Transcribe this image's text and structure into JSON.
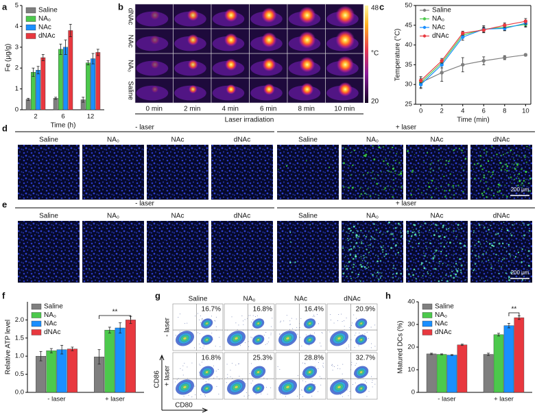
{
  "panel_letters": [
    "a",
    "b",
    "c",
    "d",
    "e",
    "f",
    "g",
    "h"
  ],
  "chart_data": [
    {
      "type": "bar",
      "categories": [
        "2",
        "6",
        "12"
      ],
      "xlabel": "Time (h)",
      "ylabel": "Fe (μg/g)",
      "ylim": [
        0,
        5
      ],
      "yticks": [
        0,
        1,
        2,
        3,
        4,
        5
      ],
      "legend": "upper left",
      "series": [
        {
          "name": "Saline",
          "color": "#7f7f7f",
          "values": [
            0.5,
            0.55,
            0.48
          ],
          "errors": [
            0.05,
            0.05,
            0.12
          ]
        },
        {
          "name": "NA₀",
          "color": "#4cc94c",
          "values": [
            1.8,
            2.9,
            2.25
          ],
          "errors": [
            0.2,
            0.25,
            0.1
          ]
        },
        {
          "name": "NAc",
          "color": "#1a8fff",
          "values": [
            1.9,
            3.0,
            2.45
          ],
          "errors": [
            0.18,
            0.35,
            0.25
          ]
        },
        {
          "name": "dNAc",
          "color": "#e8383f",
          "values": [
            2.5,
            3.8,
            2.75
          ],
          "errors": [
            0.15,
            0.3,
            0.15
          ]
        }
      ]
    },
    {
      "type": "line",
      "x": [
        0,
        2,
        4,
        6,
        8,
        10
      ],
      "xlim": [
        -0.5,
        10.5
      ],
      "xticks": [
        0,
        2,
        4,
        6,
        8,
        10
      ],
      "ylim": [
        25,
        50
      ],
      "yticks": [
        25,
        30,
        35,
        40,
        45,
        50
      ],
      "xlabel": "Time (min)",
      "ylabel": "Temperature (°C)",
      "frame": true,
      "legend": "upper left",
      "series": [
        {
          "name": "Saline",
          "color": "#7f7f7f",
          "values": [
            30.5,
            33,
            35,
            36,
            36.8,
            37.5
          ],
          "errors": [
            1.5,
            2.2,
            1.8,
            1.0,
            0.5,
            0.3
          ]
        },
        {
          "name": "NA₀",
          "color": "#4cc94c",
          "values": [
            30.5,
            35.5,
            42.5,
            44,
            44.5,
            45.2
          ],
          "errors": [
            0.8,
            0.8,
            0.6,
            0.6,
            0.8,
            0.7
          ]
        },
        {
          "name": "NAc",
          "color": "#1a8fff",
          "values": [
            30,
            35,
            42,
            44,
            44.2,
            45.5
          ],
          "errors": [
            0.8,
            0.8,
            0.8,
            0.9,
            0.6,
            0.8
          ]
        },
        {
          "name": "dNAc",
          "color": "#e8383f",
          "values": [
            31,
            36,
            43,
            43.8,
            45,
            46
          ],
          "errors": [
            0.6,
            0.6,
            0.5,
            0.6,
            0.6,
            0.7
          ]
        }
      ]
    },
    {
      "type": "bar",
      "categories": [
        "- laser",
        "+ laser"
      ],
      "ylabel": "Relative ATP level",
      "ylim": [
        0,
        2.5
      ],
      "yticks": [
        {
          "value": 0,
          "label": "0.0"
        },
        0.5,
        {
          "value": 1,
          "label": "1.0"
        },
        1.5,
        {
          "value": 2,
          "label": "2.0"
        }
      ],
      "legend": "upper left",
      "annotation": "**",
      "series": [
        {
          "name": "Saline",
          "color": "#7f7f7f",
          "values": [
            1.0,
            0.98
          ],
          "errors": [
            0.13,
            0.2
          ]
        },
        {
          "name": "NA₀",
          "color": "#4cc94c",
          "values": [
            1.15,
            1.72
          ],
          "errors": [
            0.06,
            0.08
          ]
        },
        {
          "name": "NAc",
          "color": "#1a8fff",
          "values": [
            1.18,
            1.78
          ],
          "errors": [
            0.12,
            0.14
          ]
        },
        {
          "name": "dNAc",
          "color": "#e8383f",
          "values": [
            1.2,
            2.0
          ],
          "errors": [
            0.05,
            0.1
          ]
        }
      ]
    },
    {
      "type": "bar",
      "categories": [
        "- laser",
        "+ laser"
      ],
      "ylabel": "Matured DCs (%)",
      "ylim": [
        0,
        40
      ],
      "yticks": [
        0,
        10,
        20,
        30,
        40
      ],
      "legend": "upper left",
      "annotation": "**",
      "series": [
        {
          "name": "Saline",
          "color": "#7f7f7f",
          "values": [
            17,
            16.8
          ],
          "errors": [
            0.3,
            0.5
          ]
        },
        {
          "name": "NA₀",
          "color": "#4cc94c",
          "values": [
            16.8,
            25.5
          ],
          "errors": [
            0.2,
            0.6
          ]
        },
        {
          "name": "NAc",
          "color": "#1a8fff",
          "values": [
            16.5,
            29.5
          ],
          "errors": [
            0.2,
            1.0
          ]
        },
        {
          "name": "dNAc",
          "color": "#e8383f",
          "values": [
            21,
            33
          ],
          "errors": [
            0.3,
            0.8
          ]
        }
      ]
    }
  ],
  "panel_b": {
    "row_labels": [
      "dNAc",
      "NAc",
      "NA₀",
      "Saline"
    ],
    "col_labels": [
      "0 min",
      "2 min",
      "4 min",
      "6 min",
      "8 min",
      "10 min"
    ],
    "xlabel": "Laser irradiation",
    "colorbar_max": "48",
    "colorbar_unit": "°C",
    "colorbar_min": "20"
  },
  "panel_d": {
    "groups": [
      "- laser",
      "+ laser"
    ],
    "columns": [
      "Saline",
      "NA₀",
      "NAc",
      "dNAc"
    ],
    "scale_bar": "200 μm"
  },
  "panel_e": {
    "groups": [
      "- laser",
      "+ laser"
    ],
    "columns": [
      "Saline",
      "NA₀",
      "NAc",
      "dNAc"
    ],
    "scale_bar": "200 μm"
  },
  "panel_g": {
    "columns": [
      "Saline",
      "NA₀",
      "NAc",
      "dNAc"
    ],
    "rows": [
      "- laser",
      "+ laser"
    ],
    "percentages": [
      [
        "16.7%",
        "16.8%",
        "16.4%",
        "20.9%"
      ],
      [
        "16.8%",
        "25.3%",
        "28.8%",
        "32.7%"
      ]
    ],
    "ylabel": "CD86",
    "xlabel": "CD80"
  }
}
